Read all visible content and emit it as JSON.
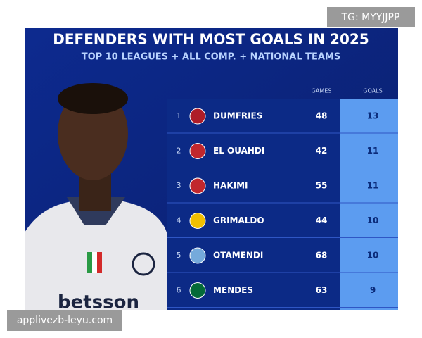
{
  "header": {
    "title": "DEFENDERS WITH MOST GOALS IN 2025",
    "subtitle": "TOP 10 LEAGUES + ALL COMP. + NATIONAL TEAMS"
  },
  "table": {
    "columns": [
      "GAMES",
      "GOALS"
    ],
    "rows": [
      [
        "1",
        "DUMFRIES",
        "48",
        "13"
      ],
      [
        "2",
        "EL OUAHDI",
        "42",
        "11"
      ],
      [
        "3",
        "HAKIMI",
        "55",
        "11"
      ],
      [
        "4",
        "GRIMALDO",
        "44",
        "10"
      ],
      [
        "5",
        "OTAMENDI",
        "68",
        "10"
      ],
      [
        "6",
        "MENDES",
        "63",
        "9"
      ]
    ]
  },
  "watermarks": {
    "top": "TG: MYYJJPP",
    "bottom": "applivezb-leyu.com"
  }
}
